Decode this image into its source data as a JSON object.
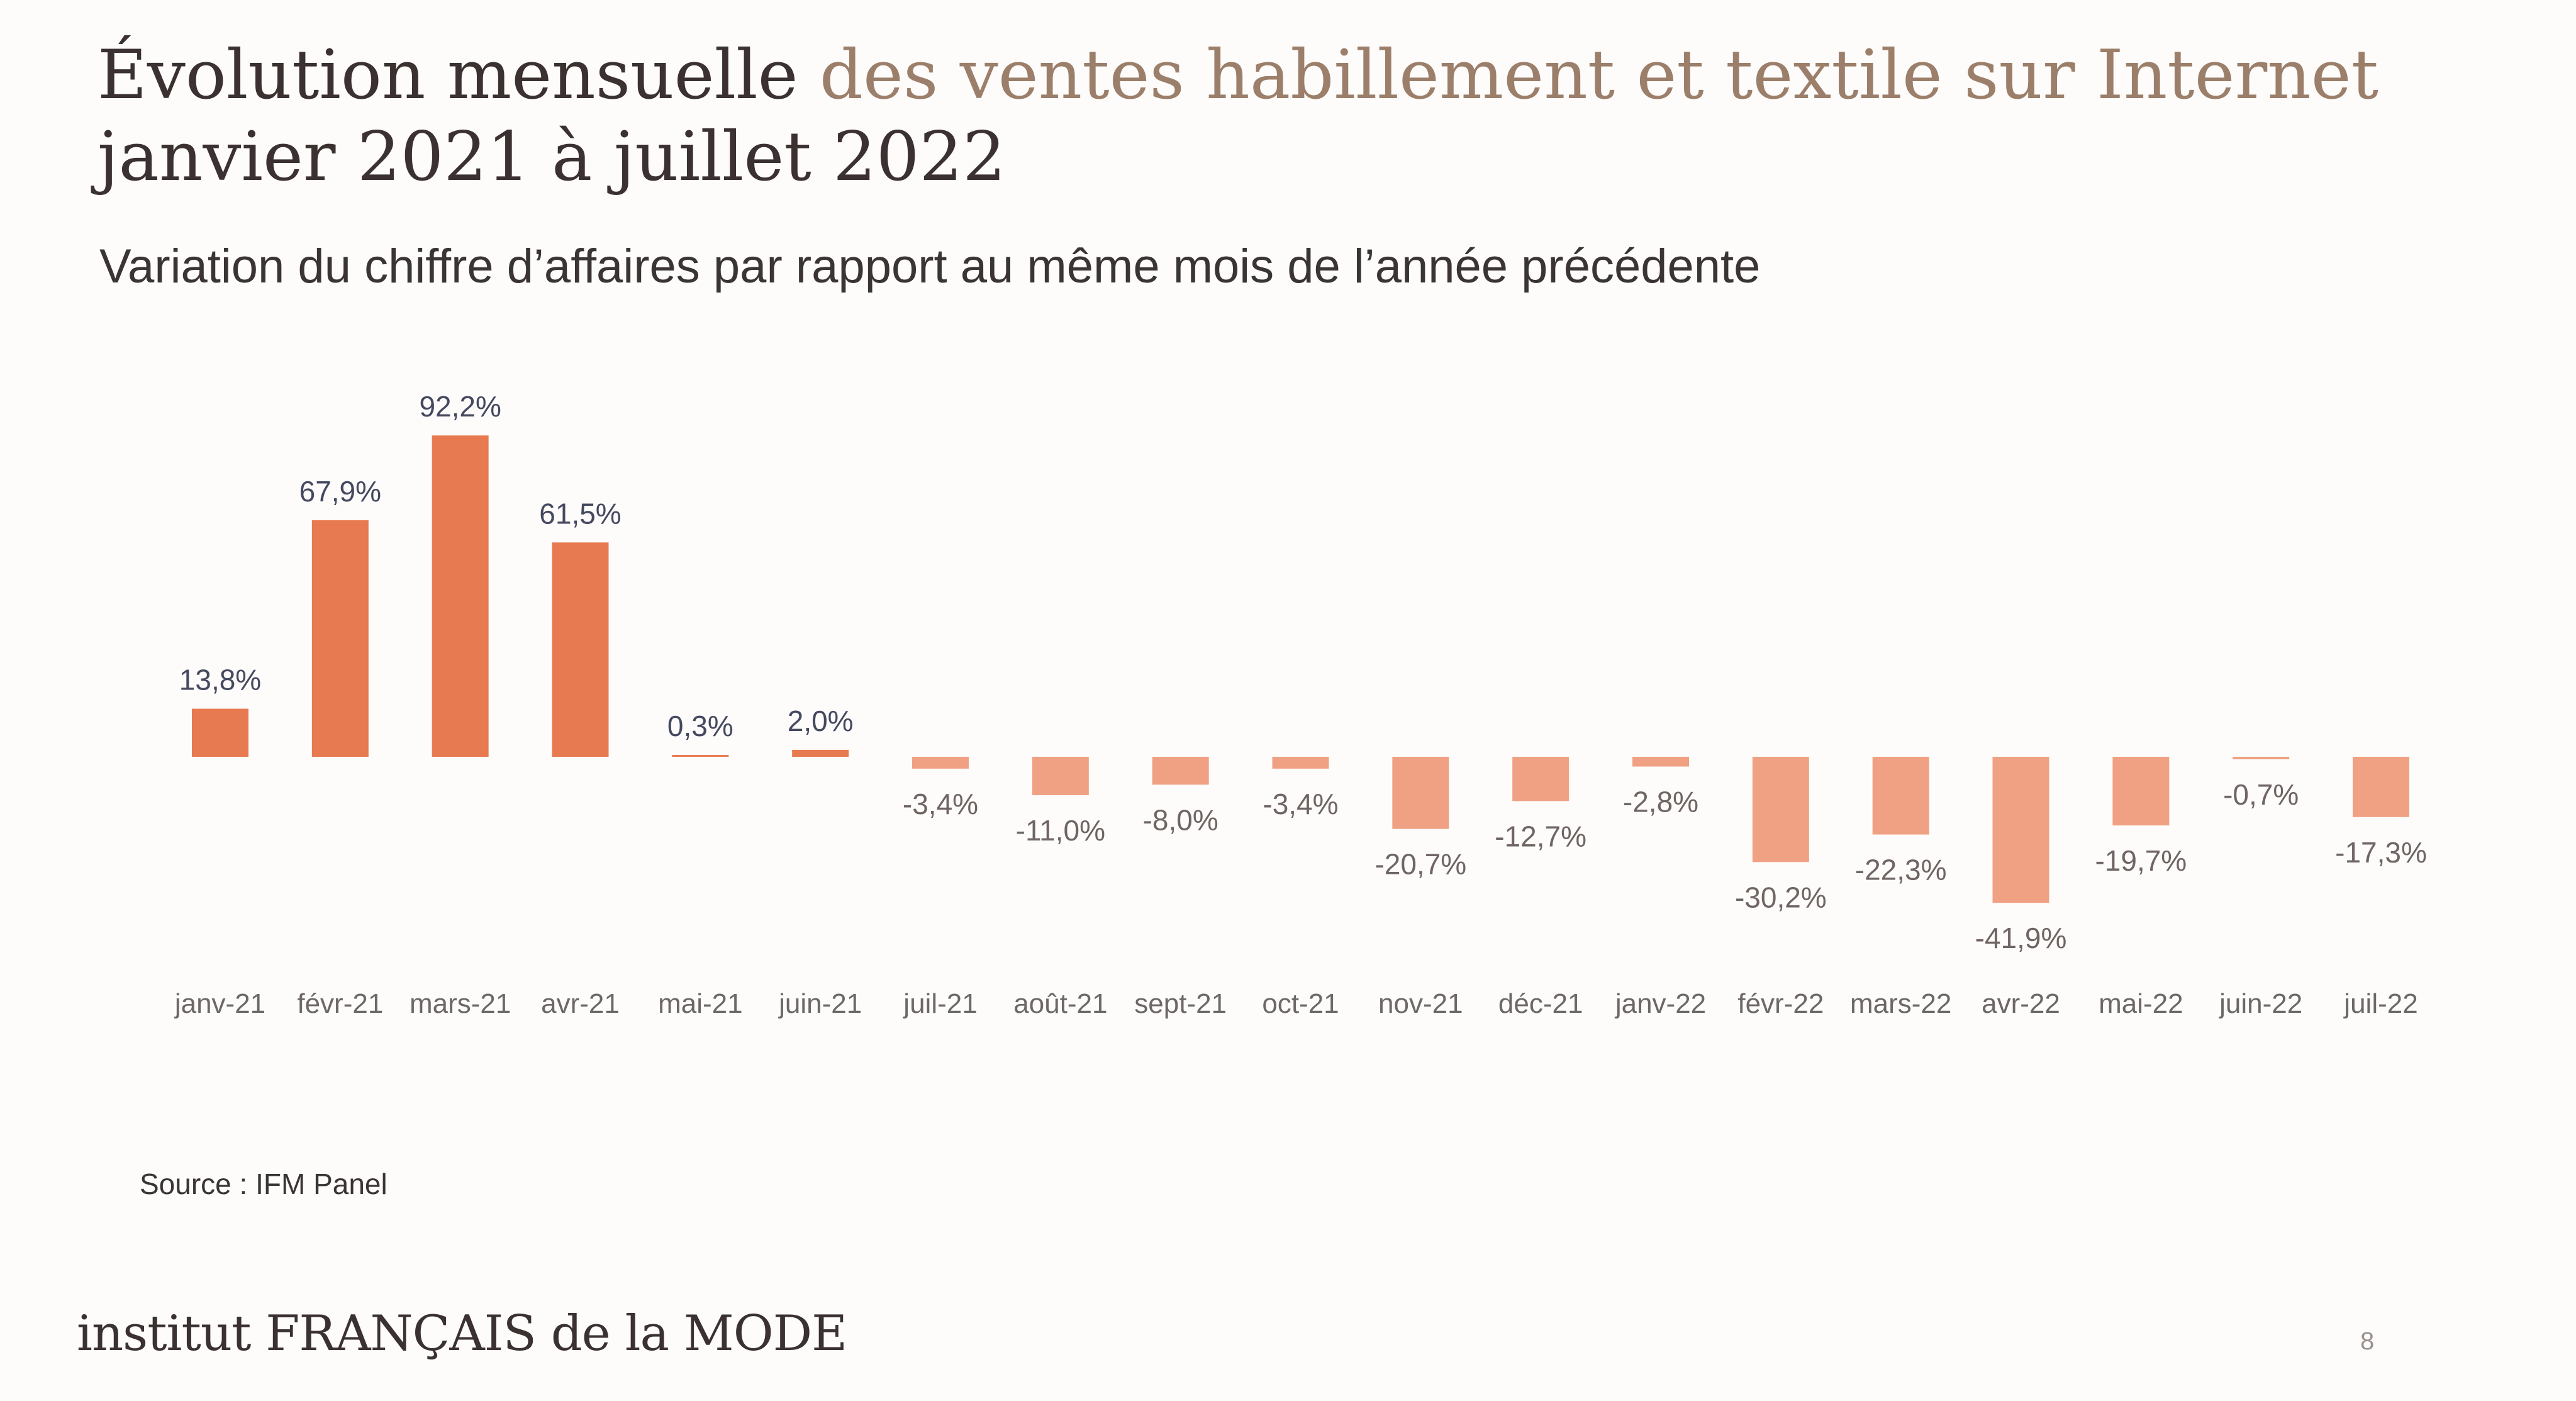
{
  "title": {
    "line1_part1": "Évolution mensuelle",
    "line1_part2": " des ventes habillement et textile sur Internet",
    "line2": "janvier 2021 à juillet 2022"
  },
  "subtitle": "Variation du chiffre d’affaires par rapport au même mois de l’année précédente",
  "source": "Source : IFM Panel",
  "brand": "institut FRANÇAIS de la MODE",
  "page_number": "8",
  "colors": {
    "bar_positive": "#e77a50",
    "bar_negative": "#f0a183"
  },
  "chart_data": {
    "type": "bar",
    "categories": [
      "janv-21",
      "févr-21",
      "mars-21",
      "avr-21",
      "mai-21",
      "juin-21",
      "juil-21",
      "août-21",
      "sept-21",
      "oct-21",
      "nov-21",
      "déc-21",
      "janv-22",
      "févr-22",
      "mars-22",
      "avr-22",
      "mai-22",
      "juin-22",
      "juil-22"
    ],
    "values": [
      13.8,
      67.9,
      92.2,
      61.5,
      0.3,
      2.0,
      -3.4,
      -11.0,
      -8.0,
      -3.4,
      -20.7,
      -12.7,
      -2.8,
      -30.2,
      -22.3,
      -41.9,
      -19.7,
      -0.7,
      -17.3
    ],
    "data_labels": [
      "13,8%",
      "67,9%",
      "92,2%",
      "61,5%",
      "0,3%",
      "2,0%",
      "-3,4%",
      "-11,0%",
      "-8,0%",
      "-3,4%",
      "-20,7%",
      "-12,7%",
      "-2,8%",
      "-30,2%",
      "-22,3%",
      "-41,9%",
      "-19,7%",
      "-0,7%",
      "-17,3%"
    ],
    "title": "Évolution mensuelle des ventes habillement et textile sur Internet janvier 2021 à juillet 2022",
    "subtitle": "Variation du chiffre d’affaires par rapport au même mois de l’année précédente",
    "xlabel": "",
    "ylabel": "",
    "grid": false,
    "legend": "none"
  }
}
